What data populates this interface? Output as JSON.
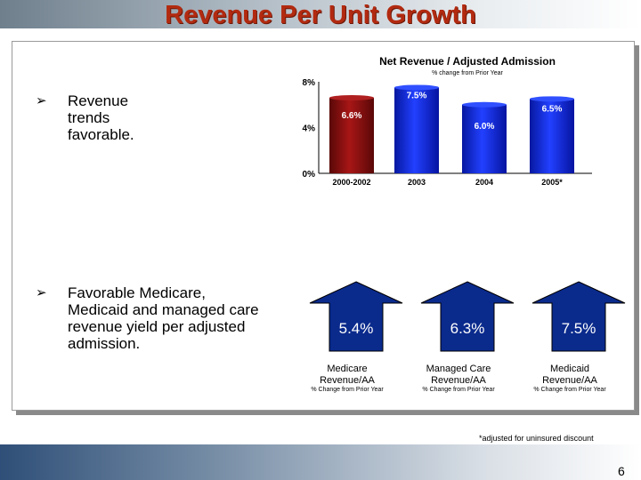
{
  "title": "Revenue Per Unit Growth",
  "bullets": [
    {
      "text": "Revenue trends favorable."
    },
    {
      "lines": [
        "Favorable Medicare,",
        "Medicaid and managed care",
        "revenue yield per adjusted",
        "admission."
      ]
    }
  ],
  "chart_data": {
    "type": "bar",
    "title": "Net Revenue / Adjusted Admission",
    "subtitle": "% change from Prior Year",
    "categories": [
      "2000-2002",
      "2003",
      "2004",
      "2005*"
    ],
    "values": [
      6.6,
      7.5,
      6.0,
      6.5
    ],
    "data_labels": [
      "6.6%",
      "7.5%",
      "6.0%",
      "6.5%"
    ],
    "yticks": [
      "0%",
      "4%",
      "8%"
    ],
    "ylim": [
      0,
      8
    ],
    "colors": [
      "#8b1010",
      "#0a1ed8",
      "#0a1ed8",
      "#0a1ed8"
    ]
  },
  "arrows": [
    {
      "value": "5.4%",
      "label_lines": [
        "Medicare",
        "Revenue/AA"
      ],
      "sub": "% Change from Prior Year"
    },
    {
      "value": "6.3%",
      "label_lines": [
        "Managed Care",
        "Revenue/AA"
      ],
      "sub": "% Change from Prior Year"
    },
    {
      "value": "7.5%",
      "label_lines": [
        "Medicaid",
        "Revenue/AA"
      ],
      "sub": "% Change from Prior Year"
    }
  ],
  "footnote": "*adjusted for uninsured discount",
  "page_number": "6",
  "colors": {
    "title": "#b22a10",
    "arrow_fill": "#0a2a8c",
    "bar_red": "#8b1010",
    "bar_blue": "#0a1ed8"
  }
}
